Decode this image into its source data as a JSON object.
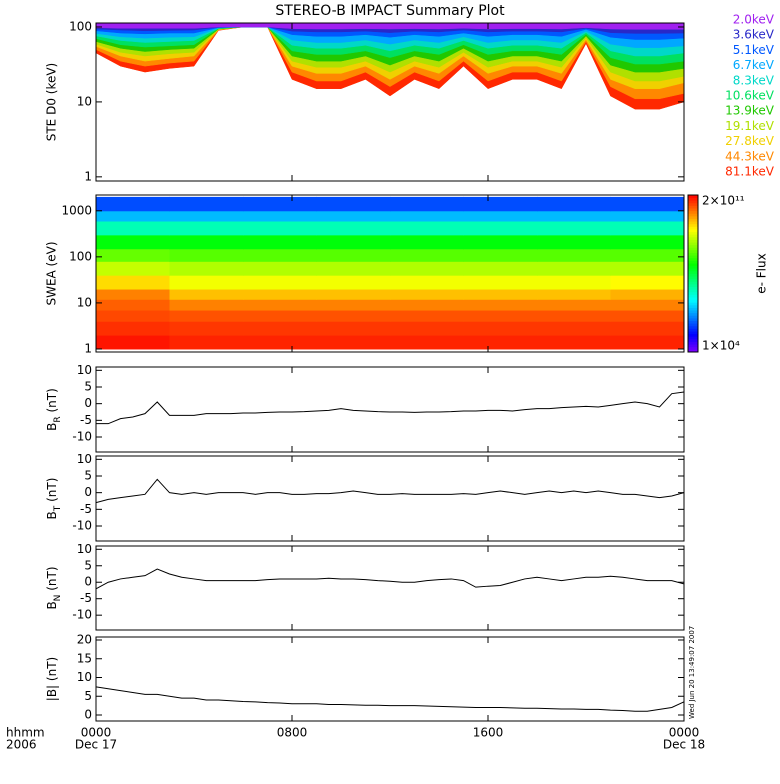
{
  "chart_data": [
    {
      "type": "area",
      "title": "STEREO-B IMPACT Summary Plot",
      "ylabel": "STE D0 (keV)",
      "log_y": true,
      "xlim": [
        0,
        24
      ],
      "ylim": [
        0.88,
        113
      ],
      "yticks": [
        1,
        10,
        100
      ],
      "x": [
        0,
        1,
        2,
        3,
        4,
        5,
        6,
        7,
        8,
        9,
        10,
        11,
        12,
        13,
        14,
        15,
        16,
        17,
        18,
        19,
        20,
        21,
        22,
        23,
        24
      ],
      "series": [
        {
          "name": "2.0keV",
          "color": "#a020f0",
          "values": [
            98,
            96,
            96,
            96,
            96,
            100,
            100,
            100,
            95,
            94,
            94,
            95,
            94,
            95,
            94,
            96,
            94,
            95,
            95,
            94,
            98,
            94,
            93,
            93,
            93
          ]
        },
        {
          "name": "3.6keV",
          "color": "#2828c8",
          "values": [
            94,
            91,
            89,
            90,
            91,
            99,
            100,
            100,
            88,
            86,
            86,
            88,
            84,
            88,
            86,
            91,
            86,
            88,
            88,
            86,
            96,
            84,
            82,
            82,
            83
          ]
        },
        {
          "name": "5.1keV",
          "color": "#0058ff",
          "values": [
            89,
            83,
            81,
            83,
            83,
            98,
            100,
            100,
            79,
            75,
            75,
            79,
            73,
            79,
            75,
            83,
            75,
            79,
            79,
            75,
            93,
            73,
            68,
            68,
            71
          ]
        },
        {
          "name": "6.7keV",
          "color": "#00a8ff",
          "values": [
            82,
            74,
            71,
            73,
            74,
            97,
            100,
            100,
            67,
            62,
            62,
            67,
            59,
            67,
            62,
            74,
            62,
            67,
            67,
            62,
            88,
            59,
            53,
            53,
            56
          ]
        },
        {
          "name": "8.3keV",
          "color": "#00d8c8",
          "values": [
            76,
            66,
            62,
            64,
            66,
            96,
            100,
            100,
            57,
            52,
            52,
            57,
            48,
            57,
            52,
            66,
            52,
            57,
            57,
            52,
            84,
            48,
            41,
            41,
            45
          ]
        },
        {
          "name": "10.6keV",
          "color": "#00e060",
          "values": [
            70,
            58,
            54,
            56,
            58,
            95,
            100,
            100,
            48,
            43,
            43,
            48,
            39,
            48,
            43,
            58,
            43,
            48,
            48,
            43,
            80,
            39,
            32,
            32,
            35
          ]
        },
        {
          "name": "13.9keV",
          "color": "#20c800",
          "values": [
            64,
            52,
            47,
            50,
            52,
            94,
            100,
            100,
            41,
            35,
            35,
            41,
            31,
            41,
            35,
            52,
            35,
            41,
            41,
            35,
            76,
            31,
            25,
            25,
            28
          ]
        },
        {
          "name": "19.1keV",
          "color": "#b0e000",
          "values": [
            59,
            46,
            41,
            44,
            46,
            93,
            100,
            100,
            35,
            29,
            29,
            35,
            25,
            35,
            29,
            46,
            29,
            35,
            35,
            29,
            72,
            25,
            19,
            19,
            22
          ]
        },
        {
          "name": "27.8keV",
          "color": "#f0d000",
          "values": [
            55,
            41,
            35,
            38,
            41,
            92,
            100,
            100,
            30,
            24,
            24,
            30,
            20,
            30,
            24,
            41,
            24,
            30,
            30,
            24,
            68,
            20,
            15,
            15,
            18
          ]
        },
        {
          "name": "44.3keV",
          "color": "#ff8800",
          "values": [
            50,
            35,
            30,
            33,
            35,
            91,
            100,
            100,
            25,
            19,
            19,
            25,
            16,
            25,
            19,
            35,
            19,
            25,
            25,
            19,
            64,
            16,
            11,
            11,
            13
          ]
        },
        {
          "name": "81.1keV",
          "color": "#ff2800",
          "values": [
            45,
            30,
            25,
            28,
            30,
            90,
            100,
            100,
            20,
            15,
            15,
            20,
            12,
            20,
            15,
            30,
            15,
            20,
            20,
            15,
            60,
            12,
            8,
            8,
            10
          ]
        }
      ]
    },
    {
      "type": "heatmap",
      "ylabel": "SWEA (eV)",
      "log_y": true,
      "xlim": [
        0,
        24
      ],
      "ylim": [
        0.86,
        2200
      ],
      "yticks": [
        1,
        10,
        100,
        1000
      ],
      "x_edges": [
        0,
        3,
        6,
        9,
        12,
        15,
        18,
        21,
        24
      ],
      "y_edges": [
        1,
        2,
        4,
        7,
        12,
        20,
        40,
        80,
        150,
        300,
        600,
        1000,
        2000
      ],
      "values": [
        [
          150000000000.0,
          120000000000.0,
          120000000000.0,
          120000000000.0,
          120000000000.0,
          120000000000.0,
          120000000000.0,
          120000000000.0
        ],
        [
          100000000000.0,
          90000000000.0,
          90000000000.0,
          90000000000.0,
          90000000000.0,
          90000000000.0,
          90000000000.0,
          90000000000.0
        ],
        [
          70000000000.0,
          60000000000.0,
          60000000000.0,
          60000000000.0,
          60000000000.0,
          60000000000.0,
          60000000000.0,
          60000000000.0
        ],
        [
          50000000000.0,
          30000000000.0,
          30000000000.0,
          30000000000.0,
          30000000000.0,
          30000000000.0,
          30000000000.0,
          30000000000.0
        ],
        [
          30000000000.0,
          12000000000.0,
          12000000000.0,
          12000000000.0,
          12000000000.0,
          12000000000.0,
          12000000000.0,
          15000000000.0
        ],
        [
          8000000000.0,
          4000000000.0,
          4000000000.0,
          4000000000.0,
          4000000000.0,
          4000000000.0,
          4000000000.0,
          5000000000.0
        ],
        [
          2000000000.0,
          1500000000.0,
          1500000000.0,
          1500000000.0,
          1500000000.0,
          1500000000.0,
          1500000000.0,
          1500000000.0
        ],
        [
          500000000.0,
          400000000.0,
          400000000.0,
          400000000.0,
          400000000.0,
          400000000.0,
          400000000.0,
          400000000.0
        ],
        [
          100000000.0,
          100000000.0,
          100000000.0,
          100000000.0,
          100000000.0,
          100000000.0,
          100000000.0,
          100000000.0
        ],
        [
          8000000.0,
          8000000.0,
          8000000.0,
          8000000.0,
          8000000.0,
          8000000.0,
          8000000.0,
          8000000.0
        ],
        [
          1000000.0,
          1000000.0,
          1000000.0,
          1000000.0,
          1000000.0,
          1000000.0,
          1000000.0,
          1000000.0
        ],
        [
          200000.0,
          200000.0,
          200000.0,
          200000.0,
          200000.0,
          200000.0,
          200000.0,
          200000.0
        ]
      ],
      "zlim": [
        10000.0,
        200000000000.0
      ],
      "zlog": true,
      "zticks": [
        {
          "value": 200000000000.0,
          "label": "2×10¹¹"
        },
        {
          "value": 10000.0,
          "label": "1×10⁴"
        }
      ],
      "zlabel": "e- Flux"
    },
    {
      "type": "line",
      "ylabel": [
        "B",
        "R",
        " (nT)"
      ],
      "color": "#000000",
      "xlim": [
        0,
        24
      ],
      "ylim": [
        -14.5,
        11
      ],
      "yticks": [
        -10,
        -5,
        0,
        5,
        10
      ],
      "x": [
        0,
        0.5,
        1,
        1.5,
        2,
        2.5,
        3,
        3.5,
        4,
        4.5,
        5,
        5.5,
        6,
        6.5,
        7,
        7.5,
        8,
        8.5,
        9,
        9.5,
        10,
        10.5,
        11,
        11.5,
        12,
        12.5,
        13,
        13.5,
        14,
        14.5,
        15,
        15.5,
        16,
        16.5,
        17,
        17.5,
        18,
        18.5,
        19,
        19.5,
        20,
        20.5,
        21,
        21.5,
        22,
        22.5,
        23,
        23.5,
        24
      ],
      "values": [
        -6,
        -6,
        -4.5,
        -4,
        -3,
        0.5,
        -3.5,
        -3.5,
        -3.5,
        -3,
        -3,
        -3,
        -2.8,
        -2.8,
        -2.6,
        -2.5,
        -2.5,
        -2.4,
        -2.2,
        -2,
        -1.5,
        -2,
        -2.2,
        -2.4,
        -2.5,
        -2.5,
        -2.6,
        -2.5,
        -2.5,
        -2.4,
        -2.2,
        -2.2,
        -2,
        -2,
        -2.2,
        -1.8,
        -1.5,
        -1.5,
        -1.2,
        -1,
        -0.8,
        -1,
        -0.5,
        0,
        0.5,
        0,
        -1,
        3,
        3.5
      ]
    },
    {
      "type": "line",
      "ylabel": [
        "B",
        "T",
        " (nT)"
      ],
      "color": "#000000",
      "xlim": [
        0,
        24
      ],
      "ylim": [
        -14.5,
        11
      ],
      "yticks": [
        -10,
        -5,
        0,
        5,
        10
      ],
      "x": [
        0,
        0.5,
        1,
        1.5,
        2,
        2.5,
        3,
        3.5,
        4,
        4.5,
        5,
        5.5,
        6,
        6.5,
        7,
        7.5,
        8,
        8.5,
        9,
        9.5,
        10,
        10.5,
        11,
        11.5,
        12,
        12.5,
        13,
        13.5,
        14,
        14.5,
        15,
        15.5,
        16,
        16.5,
        17,
        17.5,
        18,
        18.5,
        19,
        19.5,
        20,
        20.5,
        21,
        21.5,
        22,
        22.5,
        23,
        23.5,
        24
      ],
      "values": [
        -3,
        -2,
        -1.5,
        -1,
        -0.5,
        4,
        0,
        -0.5,
        0,
        -0.5,
        0,
        0,
        0,
        -0.5,
        0,
        0,
        -0.5,
        -0.5,
        -0.3,
        -0.3,
        0,
        0.5,
        0,
        -0.5,
        -0.5,
        -0.3,
        -0.5,
        -0.5,
        -0.5,
        -0.5,
        -0.3,
        -0.5,
        0,
        0.5,
        0,
        -0.5,
        0,
        0.5,
        0,
        0.5,
        0,
        0.5,
        0,
        -0.5,
        -0.5,
        -1,
        -1.5,
        -1,
        0
      ]
    },
    {
      "type": "line",
      "ylabel": [
        "B",
        "N",
        " (nT)"
      ],
      "color": "#000000",
      "xlim": [
        0,
        24
      ],
      "ylim": [
        -14.5,
        11
      ],
      "yticks": [
        -10,
        -5,
        0,
        5,
        10
      ],
      "x": [
        0,
        0.5,
        1,
        1.5,
        2,
        2.5,
        3,
        3.5,
        4,
        4.5,
        5,
        5.5,
        6,
        6.5,
        7,
        7.5,
        8,
        8.5,
        9,
        9.5,
        10,
        10.5,
        11,
        11.5,
        12,
        12.5,
        13,
        13.5,
        14,
        14.5,
        15,
        15.5,
        16,
        16.5,
        17,
        17.5,
        18,
        18.5,
        19,
        19.5,
        20,
        20.5,
        21,
        21.5,
        22,
        22.5,
        23,
        23.5,
        24
      ],
      "values": [
        -2,
        0,
        1,
        1.5,
        2,
        4,
        2.5,
        1.5,
        1,
        0.5,
        0.5,
        0.5,
        0.5,
        0.5,
        0.8,
        1,
        1,
        1,
        1,
        1.2,
        1,
        1,
        0.8,
        0.5,
        0.3,
        0,
        0,
        0.5,
        0.8,
        1,
        0.5,
        -1.5,
        -1.2,
        -1,
        0,
        1,
        1.5,
        1,
        0.5,
        1,
        1.5,
        1.5,
        1.8,
        1.5,
        1,
        0.5,
        0.5,
        0.5,
        -0.5
      ]
    },
    {
      "type": "line",
      "ylabel": [
        "|B| (nT)"
      ],
      "color": "#000000",
      "xlim": [
        0,
        24
      ],
      "ylim": [
        -1.6,
        20.8
      ],
      "yticks": [
        0,
        5,
        10,
        15,
        20
      ],
      "x": [
        0,
        0.5,
        1,
        1.5,
        2,
        2.5,
        3,
        3.5,
        4,
        4.5,
        5,
        5.5,
        6,
        6.5,
        7,
        7.5,
        8,
        8.5,
        9,
        9.5,
        10,
        10.5,
        11,
        11.5,
        12,
        12.5,
        13,
        13.5,
        14,
        14.5,
        15,
        15.5,
        16,
        16.5,
        17,
        17.5,
        18,
        18.5,
        19,
        19.5,
        20,
        20.5,
        21,
        21.5,
        22,
        22.5,
        23,
        23.5,
        24
      ],
      "values": [
        7.5,
        7,
        6.5,
        6,
        5.5,
        5.5,
        5,
        4.5,
        4.5,
        4,
        4,
        3.8,
        3.6,
        3.5,
        3.3,
        3.2,
        3,
        3,
        3,
        2.8,
        2.8,
        2.7,
        2.6,
        2.6,
        2.5,
        2.5,
        2.5,
        2.4,
        2.3,
        2.2,
        2.1,
        2,
        2,
        2,
        1.9,
        1.8,
        1.8,
        1.7,
        1.6,
        1.6,
        1.5,
        1.5,
        1.3,
        1.2,
        1,
        1,
        1.5,
        2,
        3.5
      ],
      "xticks": [
        {
          "value": 0,
          "label": "0000"
        },
        {
          "value": 8,
          "label": "0800"
        },
        {
          "value": 16,
          "label": "1600"
        },
        {
          "value": 24,
          "label": "0000"
        }
      ],
      "date_ticks": [
        {
          "value": 0,
          "label": "Dec 17"
        },
        {
          "value": 24,
          "label": "Dec 18"
        }
      ],
      "xlabel": [
        "hhmm",
        "2006"
      ],
      "timestamp": "Wed Jun 20 13:49:07 2007"
    }
  ]
}
